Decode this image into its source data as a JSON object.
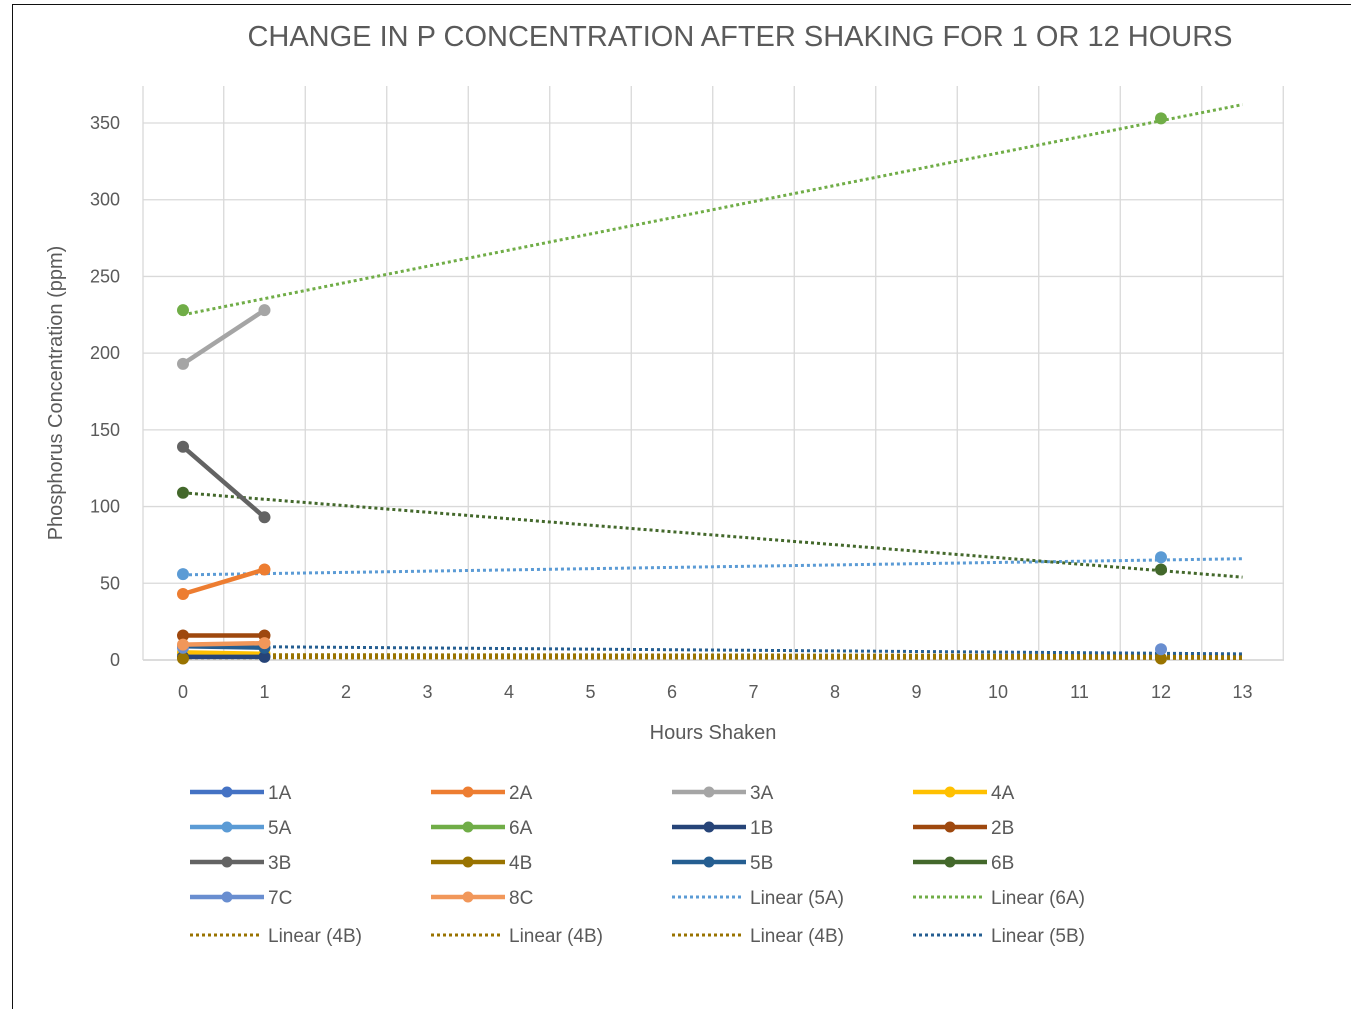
{
  "chart_data": {
    "type": "line",
    "title": "CHANGE IN P CONCENTRATION AFTER SHAKING FOR 1 OR 12 HOURS",
    "xlabel": "Hours Shaken",
    "ylabel": "Phosphorus Concentration (ppm)",
    "xlim": [
      -0.3,
      13.5
    ],
    "ylim": [
      0,
      375
    ],
    "x_ticks": [
      0,
      1,
      2,
      3,
      4,
      5,
      6,
      7,
      8,
      9,
      10,
      11,
      12,
      13
    ],
    "y_ticks": [
      0,
      50,
      100,
      150,
      200,
      250,
      300,
      350
    ],
    "grid": true,
    "legend_position": "bottom",
    "series": [
      {
        "name": "1A",
        "color": "#4472C4",
        "x": [
          0,
          1
        ],
        "y": [
          4,
          3
        ]
      },
      {
        "name": "2A",
        "color": "#ED7D31",
        "x": [
          0,
          1
        ],
        "y": [
          43,
          59
        ]
      },
      {
        "name": "3A",
        "color": "#A5A5A5",
        "x": [
          0,
          1
        ],
        "y": [
          193,
          228
        ]
      },
      {
        "name": "4A",
        "color": "#FFC000",
        "x": [
          0,
          1
        ],
        "y": [
          5,
          4
        ]
      },
      {
        "name": "5A",
        "color": "#5B9BD5",
        "x": [
          0,
          12
        ],
        "y": [
          56,
          67
        ]
      },
      {
        "name": "6A",
        "color": "#70AD47",
        "x": [
          0,
          12
        ],
        "y": [
          228,
          353
        ]
      },
      {
        "name": "1B",
        "color": "#264478",
        "x": [
          0,
          1
        ],
        "y": [
          2,
          2
        ]
      },
      {
        "name": "2B",
        "color": "#9E480E",
        "x": [
          0,
          1
        ],
        "y": [
          16,
          16
        ]
      },
      {
        "name": "3B",
        "color": "#636363",
        "x": [
          0,
          1
        ],
        "y": [
          139,
          93
        ]
      },
      {
        "name": "4B",
        "color": "#997300",
        "x": [
          0,
          12
        ],
        "y": [
          1,
          1
        ]
      },
      {
        "name": "5B",
        "color": "#255E91",
        "x": [
          0,
          1
        ],
        "y": [
          9,
          8
        ]
      },
      {
        "name": "6B",
        "color": "#43682B",
        "x": [
          0,
          12
        ],
        "y": [
          109,
          59
        ]
      },
      {
        "name": "7C",
        "color": "#698ED0",
        "x": [
          0,
          12
        ],
        "y": [
          8,
          7
        ]
      },
      {
        "name": "8C",
        "color": "#F1975A",
        "x": [
          0,
          1
        ],
        "y": [
          10,
          11
        ]
      }
    ],
    "trendlines": [
      {
        "name": "Linear (5A)",
        "color": "#5B9BD5",
        "x": [
          0,
          13
        ],
        "y": [
          55.5,
          66
        ]
      },
      {
        "name": "Linear (6A)",
        "color": "#70AD47",
        "x": [
          0,
          13
        ],
        "y": [
          225,
          362
        ]
      },
      {
        "name": "Linear (4B)",
        "color": "#997300",
        "x": [
          0,
          13
        ],
        "y": [
          1.5,
          1
        ]
      },
      {
        "name": "Linear (4B)",
        "color": "#997300",
        "x": [
          0,
          13
        ],
        "y": [
          2.5,
          2
        ]
      },
      {
        "name": "Linear (4B)",
        "color": "#997300",
        "x": [
          0,
          13
        ],
        "y": [
          3.5,
          3
        ]
      },
      {
        "name": "Linear (5B)",
        "color": "#255E91",
        "x": [
          0,
          13
        ],
        "y": [
          9,
          4
        ]
      },
      {
        "name": "",
        "color": "#43682B",
        "x": [
          0,
          13
        ],
        "y": [
          109,
          54
        ]
      }
    ],
    "legend": [
      {
        "label": "1A",
        "color": "#4472C4",
        "style": "solid"
      },
      {
        "label": "2A",
        "color": "#ED7D31",
        "style": "solid"
      },
      {
        "label": "3A",
        "color": "#A5A5A5",
        "style": "solid"
      },
      {
        "label": "4A",
        "color": "#FFC000",
        "style": "solid"
      },
      {
        "label": "5A",
        "color": "#5B9BD5",
        "style": "solid"
      },
      {
        "label": "6A",
        "color": "#70AD47",
        "style": "solid"
      },
      {
        "label": "1B",
        "color": "#264478",
        "style": "solid"
      },
      {
        "label": "2B",
        "color": "#9E480E",
        "style": "solid"
      },
      {
        "label": "3B",
        "color": "#636363",
        "style": "solid"
      },
      {
        "label": "4B",
        "color": "#997300",
        "style": "solid"
      },
      {
        "label": "5B",
        "color": "#255E91",
        "style": "solid"
      },
      {
        "label": "6B",
        "color": "#43682B",
        "style": "solid"
      },
      {
        "label": "7C",
        "color": "#698ED0",
        "style": "solid"
      },
      {
        "label": "8C",
        "color": "#F1975A",
        "style": "solid"
      },
      {
        "label": "Linear (5A)",
        "color": "#5B9BD5",
        "style": "dotted"
      },
      {
        "label": "Linear (6A)",
        "color": "#70AD47",
        "style": "dotted"
      },
      {
        "label": "Linear (4B)",
        "color": "#997300",
        "style": "dotted"
      },
      {
        "label": "Linear (4B)",
        "color": "#997300",
        "style": "dotted"
      },
      {
        "label": "Linear (4B)",
        "color": "#997300",
        "style": "dotted"
      },
      {
        "label": "Linear (5B)",
        "color": "#255E91",
        "style": "dotted"
      }
    ]
  }
}
